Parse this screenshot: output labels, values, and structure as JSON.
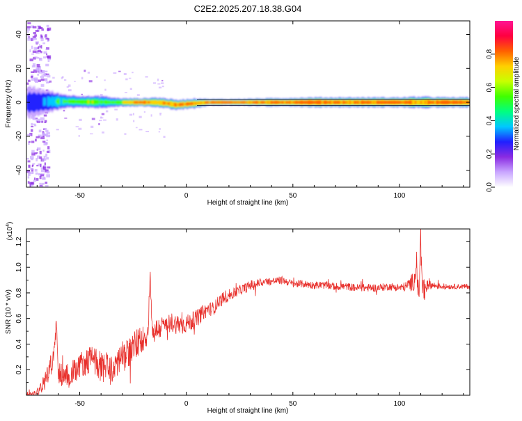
{
  "title": "C2E2.2025.207.18.38.G04",
  "chart_data": [
    {
      "type": "heatmap",
      "title": "C2E2.2025.207.18.38.G04",
      "xlabel": "Height of straight line (km)",
      "ylabel": "Frequency (Hz)",
      "xlim": [
        -75,
        133
      ],
      "ylim": [
        -50,
        48
      ],
      "x_ticks": [
        -50,
        0,
        50,
        100
      ],
      "y_ticks": [
        -40,
        -20,
        0,
        20,
        40
      ],
      "colorbar": {
        "label": "Normalized spectral amplitude",
        "range": [
          0,
          1
        ],
        "ticks": [
          "0.0",
          "0.2",
          "0.4",
          "0.6",
          "0.8"
        ],
        "colors": [
          "#ffffff",
          "#c9a6ff",
          "#8a2be2",
          "#2020ff",
          "#00c8ff",
          "#00ff80",
          "#40ff00",
          "#c8ff00",
          "#ffd000",
          "#ff6000",
          "#ff0040",
          "#ff1493"
        ]
      },
      "ridge": {
        "x": [
          -72,
          -65,
          -60,
          -55,
          -50,
          -45,
          -40,
          -35,
          -30,
          -25,
          -20,
          -15,
          -10,
          -5,
          0,
          5,
          10,
          20,
          40,
          60,
          80,
          100,
          110,
          120,
          133
        ],
        "center_hz": [
          0,
          0.5,
          0.5,
          0.5,
          0.3,
          0.2,
          0.2,
          0,
          0,
          0,
          0,
          0,
          -0.5,
          -1.5,
          -1,
          -0.5,
          0,
          0,
          0,
          0,
          0,
          0,
          0,
          0,
          0
        ],
        "halfwidth_hz": [
          10,
          7,
          5,
          4,
          4,
          3.5,
          4,
          3,
          2.5,
          2.5,
          2.5,
          3,
          3,
          3,
          3,
          3,
          2,
          2,
          2.5,
          3,
          3,
          3,
          3.5,
          3,
          3
        ],
        "peak_amplitude": [
          0.35,
          0.45,
          0.6,
          0.6,
          0.65,
          0.7,
          0.6,
          0.6,
          0.75,
          0.85,
          0.9,
          0.85,
          0.9,
          0.9,
          0.9,
          0.85,
          0.9,
          0.95,
          0.9,
          0.95,
          0.9,
          0.95,
          0.9,
          0.95,
          0.95
        ]
      }
    },
    {
      "type": "line",
      "xlabel": "Height of straight line (km)",
      "ylabel": "SNR (10 * v/v)",
      "y_multiplier": "(x10",
      "y_multiplier_exp": "4",
      "y_multiplier_close": ")",
      "xlim": [
        -75,
        133
      ],
      "ylim": [
        0,
        1.3
      ],
      "x_ticks": [
        -50,
        0,
        50,
        100
      ],
      "y_ticks": [
        0.2,
        0.4,
        0.6,
        0.8,
        1.0,
        1.2
      ],
      "y_tick_labels": [
        "0.2",
        "0.4",
        "0.6",
        "0.8",
        "1.0",
        "1.2"
      ],
      "color": "#e8302c",
      "series": [
        {
          "x": [
            -75,
            -72,
            -70,
            -68,
            -66,
            -64,
            -62,
            -61,
            -60,
            -58,
            -55,
            -52,
            -50,
            -48,
            -45,
            -42,
            -40,
            -37,
            -35,
            -33,
            -30,
            -27,
            -25,
            -22,
            -20,
            -18,
            -17,
            -16,
            -15,
            -13,
            -10,
            -7,
            -5,
            -2,
            0,
            3,
            5,
            8,
            10,
            13,
            15,
            18,
            20,
            23,
            25,
            28,
            30,
            33,
            35,
            38,
            40,
            45,
            50,
            55,
            60,
            65,
            70,
            75,
            80,
            85,
            90,
            95,
            100,
            103,
            105,
            107,
            108,
            109,
            110,
            111,
            113,
            115,
            120,
            125,
            133
          ],
          "y": [
            0.01,
            0.01,
            0.03,
            0.07,
            0.12,
            0.22,
            0.3,
            0.58,
            0.2,
            0.14,
            0.16,
            0.2,
            0.24,
            0.25,
            0.28,
            0.26,
            0.22,
            0.22,
            0.18,
            0.25,
            0.3,
            0.33,
            0.38,
            0.42,
            0.45,
            0.48,
            0.97,
            0.5,
            0.5,
            0.52,
            0.55,
            0.57,
            0.56,
            0.55,
            0.56,
            0.58,
            0.6,
            0.65,
            0.67,
            0.68,
            0.73,
            0.77,
            0.78,
            0.8,
            0.82,
            0.84,
            0.86,
            0.87,
            0.88,
            0.89,
            0.89,
            0.9,
            0.87,
            0.87,
            0.86,
            0.86,
            0.85,
            0.85,
            0.84,
            0.84,
            0.84,
            0.85,
            0.84,
            0.85,
            0.87,
            0.9,
            1.05,
            0.72,
            1.27,
            0.78,
            0.88,
            0.86,
            0.85,
            0.85,
            0.85
          ],
          "noise_amplitude": [
            0.02,
            0.02,
            0.03,
            0.05,
            0.08,
            0.08,
            0.1,
            0.04,
            0.1,
            0.1,
            0.1,
            0.1,
            0.1,
            0.1,
            0.11,
            0.12,
            0.12,
            0.12,
            0.12,
            0.12,
            0.12,
            0.12,
            0.12,
            0.12,
            0.1,
            0.1,
            0.04,
            0.1,
            0.1,
            0.09,
            0.08,
            0.08,
            0.08,
            0.08,
            0.07,
            0.07,
            0.07,
            0.06,
            0.06,
            0.05,
            0.05,
            0.05,
            0.05,
            0.04,
            0.04,
            0.04,
            0.04,
            0.04,
            0.03,
            0.03,
            0.03,
            0.03,
            0.03,
            0.03,
            0.03,
            0.03,
            0.03,
            0.03,
            0.03,
            0.03,
            0.03,
            0.03,
            0.03,
            0.04,
            0.06,
            0.08,
            0.1,
            0.12,
            0.08,
            0.12,
            0.06,
            0.03,
            0.02,
            0.02,
            0.02
          ]
        }
      ]
    }
  ]
}
